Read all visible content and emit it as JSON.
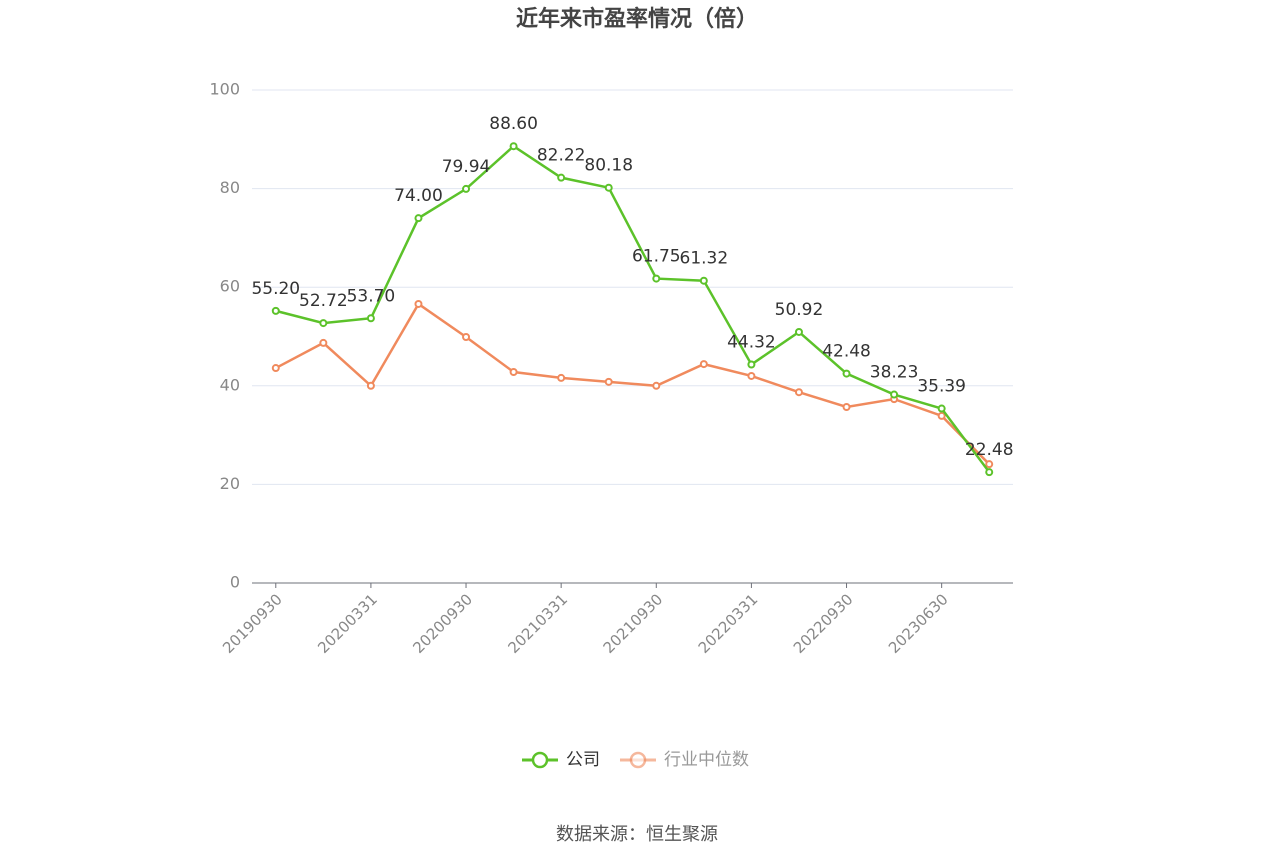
{
  "chart_data": {
    "type": "line",
    "title": "近年来市盈率情况（倍）",
    "categories": [
      "20190930",
      null,
      "20200331",
      null,
      "20200930",
      null,
      "20210331",
      null,
      "20210930",
      null,
      "20220331",
      null,
      "20220930",
      null,
      "20230630",
      null
    ],
    "series": [
      {
        "name": "公司",
        "color": "#5cc22a",
        "values": [
          55.2,
          52.72,
          53.7,
          74.0,
          79.94,
          88.6,
          82.22,
          80.18,
          61.75,
          61.32,
          44.32,
          50.92,
          42.48,
          38.23,
          35.39,
          22.48
        ],
        "value_labels": [
          "55.20",
          "52.72",
          "53.70",
          "74.00",
          "79.94",
          "88.60",
          "82.22",
          "80.18",
          "61.75",
          "61.32",
          "44.32",
          "50.92",
          "42.48",
          "38.23",
          "35.39",
          "22.48"
        ]
      },
      {
        "name": "行业中位数",
        "color": "#f08a5d",
        "values": [
          43.6,
          48.7,
          40.0,
          56.6,
          49.9,
          42.8,
          41.6,
          40.8,
          40.0,
          44.4,
          42.0,
          38.7,
          35.7,
          37.3,
          33.9,
          24.1
        ]
      }
    ],
    "ylim": [
      0,
      100
    ],
    "yticks": [
      0,
      20,
      40,
      60,
      80,
      100
    ],
    "grid": true,
    "source": "数据来源：恒生聚源"
  }
}
